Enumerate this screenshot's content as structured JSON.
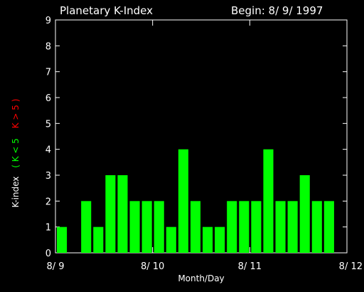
{
  "chart_data": {
    "type": "bar",
    "title": "Planetary K-Index",
    "subtitle": "Begin: 8/ 9/ 1997",
    "xlabel": "Month/Day",
    "ylabel": "K-index",
    "ylabel_green": "( K < 5",
    "ylabel_red": "K > 5 )",
    "ylim": [
      0,
      9
    ],
    "yticks": [
      "0",
      "1",
      "2",
      "3",
      "4",
      "5",
      "6",
      "7",
      "8",
      "9"
    ],
    "xticks": [
      {
        "label": "8/ 9",
        "day": 0
      },
      {
        "label": "8/ 10",
        "day": 1
      },
      {
        "label": "8/ 11",
        "day": 2
      },
      {
        "label": "8/ 12",
        "day": 3
      }
    ],
    "bars_per_day": 8,
    "values": [
      1,
      null,
      2,
      1,
      3,
      3,
      2,
      2,
      2,
      1,
      4,
      2,
      1,
      1,
      2,
      2,
      2,
      4,
      2,
      2,
      3,
      2,
      2,
      null
    ],
    "colors": {
      "low": "#00ff00",
      "high": "#ff0000",
      "axis": "#ffffff",
      "background": "#000000"
    }
  }
}
